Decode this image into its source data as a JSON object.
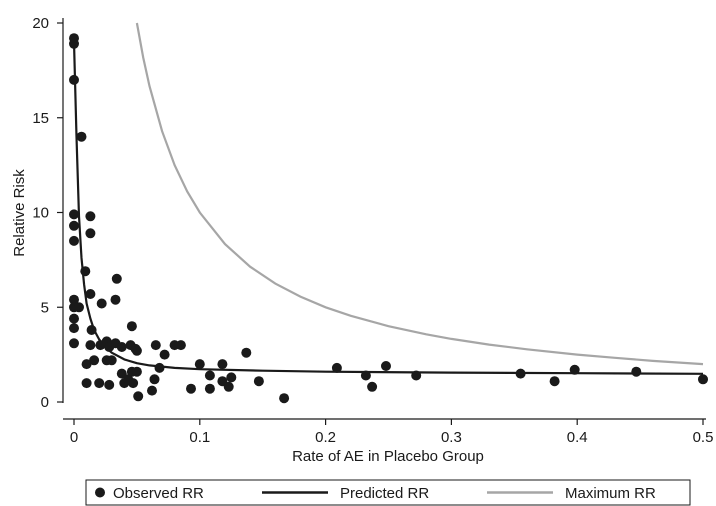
{
  "chart_data": {
    "type": "scatter",
    "xlabel": "Rate of AE in Placebo Group",
    "ylabel": "Relative Risk",
    "xlim": [
      0,
      0.5
    ],
    "ylim": [
      0,
      20
    ],
    "x_ticks": [
      "0",
      "0.1",
      "0.2",
      "0.3",
      "0.4",
      "0.5"
    ],
    "y_ticks": [
      "0",
      "5",
      "10",
      "15",
      "20"
    ],
    "grid": false,
    "legend_position": "bottom",
    "colors": {
      "observed": "#1a1a1a",
      "predicted": "#1a1a1a",
      "maximum": "#a6a6a6"
    },
    "series": [
      {
        "name": "Observed RR",
        "kind": "scatter",
        "points": [
          [
            0.0,
            19.2
          ],
          [
            0.0,
            18.9
          ],
          [
            0.0,
            17.0
          ],
          [
            0.006,
            14.0
          ],
          [
            0.0,
            9.9
          ],
          [
            0.0,
            9.3
          ],
          [
            0.0,
            8.5
          ],
          [
            0.013,
            9.8
          ],
          [
            0.013,
            8.9
          ],
          [
            0.009,
            6.9
          ],
          [
            0.0,
            5.4
          ],
          [
            0.0,
            5.0
          ],
          [
            0.004,
            5.0
          ],
          [
            0.0,
            4.4
          ],
          [
            0.0,
            3.9
          ],
          [
            0.0,
            3.1
          ],
          [
            0.013,
            5.7
          ],
          [
            0.022,
            5.2
          ],
          [
            0.034,
            6.5
          ],
          [
            0.033,
            5.4
          ],
          [
            0.046,
            4.0
          ],
          [
            0.014,
            3.8
          ],
          [
            0.013,
            3.0
          ],
          [
            0.021,
            3.0
          ],
          [
            0.026,
            3.2
          ],
          [
            0.028,
            2.9
          ],
          [
            0.033,
            3.1
          ],
          [
            0.038,
            2.9
          ],
          [
            0.045,
            3.0
          ],
          [
            0.049,
            2.8
          ],
          [
            0.05,
            2.7
          ],
          [
            0.01,
            2.0
          ],
          [
            0.016,
            2.2
          ],
          [
            0.026,
            2.2
          ],
          [
            0.03,
            2.2
          ],
          [
            0.01,
            1.0
          ],
          [
            0.02,
            1.0
          ],
          [
            0.028,
            0.9
          ],
          [
            0.038,
            1.5
          ],
          [
            0.04,
            1.0
          ],
          [
            0.043,
            1.2
          ],
          [
            0.047,
            1.0
          ],
          [
            0.046,
            1.6
          ],
          [
            0.05,
            1.6
          ],
          [
            0.051,
            0.3
          ],
          [
            0.062,
            0.6
          ],
          [
            0.064,
            1.2
          ],
          [
            0.065,
            3.0
          ],
          [
            0.068,
            1.8
          ],
          [
            0.072,
            2.5
          ],
          [
            0.08,
            3.0
          ],
          [
            0.085,
            3.0
          ],
          [
            0.093,
            0.7
          ],
          [
            0.1,
            2.0
          ],
          [
            0.108,
            1.4
          ],
          [
            0.108,
            0.7
          ],
          [
            0.118,
            2.0
          ],
          [
            0.118,
            1.1
          ],
          [
            0.123,
            0.8
          ],
          [
            0.125,
            1.3
          ],
          [
            0.137,
            2.6
          ],
          [
            0.147,
            1.1
          ],
          [
            0.167,
            0.2
          ],
          [
            0.209,
            1.8
          ],
          [
            0.232,
            1.4
          ],
          [
            0.237,
            0.8
          ],
          [
            0.248,
            1.9
          ],
          [
            0.272,
            1.4
          ],
          [
            0.355,
            1.5
          ],
          [
            0.382,
            1.1
          ],
          [
            0.398,
            1.7
          ],
          [
            0.447,
            1.6
          ],
          [
            0.5,
            1.2
          ]
        ]
      },
      {
        "name": "Predicted RR",
        "kind": "line",
        "points": [
          [
            0.0,
            19.0
          ],
          [
            0.002,
            14.0
          ],
          [
            0.004,
            9.8
          ],
          [
            0.006,
            7.6
          ],
          [
            0.008,
            6.2
          ],
          [
            0.01,
            5.2
          ],
          [
            0.013,
            4.4
          ],
          [
            0.016,
            3.8
          ],
          [
            0.02,
            3.3
          ],
          [
            0.025,
            2.9
          ],
          [
            0.03,
            2.6
          ],
          [
            0.04,
            2.25
          ],
          [
            0.05,
            2.05
          ],
          [
            0.06,
            1.93
          ],
          [
            0.08,
            1.8
          ],
          [
            0.1,
            1.73
          ],
          [
            0.15,
            1.65
          ],
          [
            0.2,
            1.6
          ],
          [
            0.3,
            1.55
          ],
          [
            0.4,
            1.52
          ],
          [
            0.5,
            1.49
          ]
        ]
      },
      {
        "name": "Maximum RR",
        "kind": "line",
        "points": [
          [
            0.05,
            20.0
          ],
          [
            0.055,
            18.18
          ],
          [
            0.06,
            16.67
          ],
          [
            0.07,
            14.29
          ],
          [
            0.08,
            12.5
          ],
          [
            0.09,
            11.11
          ],
          [
            0.1,
            10.0
          ],
          [
            0.12,
            8.33
          ],
          [
            0.14,
            7.14
          ],
          [
            0.16,
            6.25
          ],
          [
            0.18,
            5.56
          ],
          [
            0.2,
            5.0
          ],
          [
            0.22,
            4.55
          ],
          [
            0.25,
            4.0
          ],
          [
            0.28,
            3.57
          ],
          [
            0.3,
            3.33
          ],
          [
            0.33,
            3.03
          ],
          [
            0.36,
            2.78
          ],
          [
            0.4,
            2.5
          ],
          [
            0.43,
            2.33
          ],
          [
            0.46,
            2.17
          ],
          [
            0.5,
            2.0
          ]
        ]
      }
    ]
  }
}
